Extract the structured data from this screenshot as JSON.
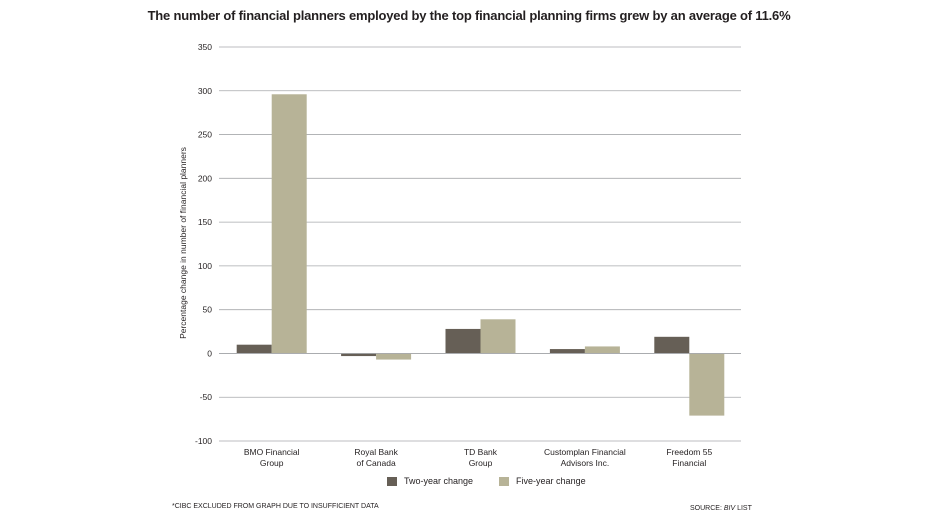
{
  "chart_data": {
    "type": "bar",
    "title": "The number of financial planners employed by the top financial planning firms grew by an average of 11.6%",
    "ylabel": "Percentage change in number of financial planners",
    "ylim": [
      -100,
      350
    ],
    "yticks": [
      350,
      300,
      250,
      200,
      150,
      100,
      50,
      0,
      -50,
      -100
    ],
    "grid": true,
    "legend_position": "bottom",
    "categories": [
      [
        "BMO Financial",
        "Group"
      ],
      [
        "Royal Bank",
        "of Canada"
      ],
      [
        "TD Bank",
        "Group"
      ],
      [
        "Customplan Financial",
        "Advisors Inc."
      ],
      [
        "Freedom 55",
        "Financial"
      ]
    ],
    "series": [
      {
        "name": "Two-year change",
        "color": "#665f56",
        "values": [
          10,
          -3,
          28,
          5,
          19
        ]
      },
      {
        "name": "Five-year change",
        "color": "#b7b397",
        "values": [
          296,
          -7,
          39,
          8,
          -71
        ]
      }
    ]
  },
  "footnote": "*CIBC EXCLUDED FROM GRAPH DUE TO INSUFFICIENT DATA",
  "source": {
    "prefix": "SOURCE: ",
    "name": "BIV",
    "suffix": " LIST"
  }
}
